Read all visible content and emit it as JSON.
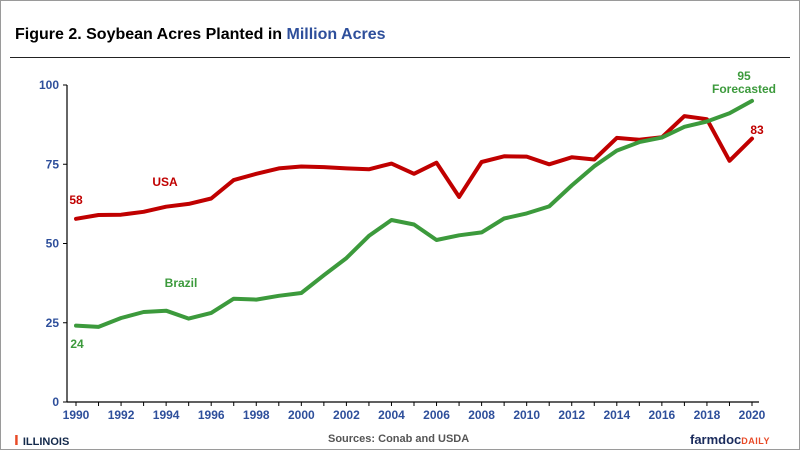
{
  "title": {
    "prefix": "Figure 2. Soybean Acres Planted in",
    "highlight": "Million Acres"
  },
  "footer": {
    "logo": "ILLINOIS",
    "sources": "Sources: Conab and USDA",
    "brand_main": "farmdoc",
    "brand_sub": "DAILY"
  },
  "colors": {
    "usa": "#c00000",
    "brazil": "#3c9a3c",
    "axis_text": "#2e4f9b",
    "axis": "#000000"
  },
  "chart_data": {
    "type": "line",
    "title": "Figure 2. Soybean Acres Planted in Million Acres",
    "xlabel": "",
    "ylabel": "",
    "xlim": [
      1990,
      2020
    ],
    "ylim": [
      0,
      100
    ],
    "x_ticks": [
      "1990",
      "1992",
      "1994",
      "1996",
      "1998",
      "2000",
      "2002",
      "2004",
      "2006",
      "2008",
      "2010",
      "2012",
      "2014",
      "2016",
      "2018",
      "2020"
    ],
    "y_ticks": [
      "0",
      "25",
      "50",
      "75",
      "100"
    ],
    "grid": false,
    "legend": "none",
    "x": [
      1990,
      1991,
      1992,
      1993,
      1994,
      1995,
      1996,
      1997,
      1998,
      1999,
      2000,
      2001,
      2002,
      2003,
      2004,
      2005,
      2006,
      2007,
      2008,
      2009,
      2010,
      2011,
      2012,
      2013,
      2014,
      2015,
      2016,
      2017,
      2018,
      2019,
      2020
    ],
    "series": [
      {
        "name": "USA",
        "color": "#c00000",
        "values": [
          57.8,
          59.0,
          59.1,
          60.0,
          61.6,
          62.5,
          64.2,
          70.0,
          72.0,
          73.7,
          74.3,
          74.1,
          73.7,
          73.4,
          75.2,
          72.0,
          75.5,
          64.7,
          75.7,
          77.5,
          77.4,
          75.0,
          77.2,
          76.5,
          83.3,
          82.7,
          83.5,
          90.2,
          89.2,
          76.1,
          83.1
        ]
      },
      {
        "name": "Brazil",
        "color": "#3c9a3c",
        "values": [
          24.1,
          23.7,
          26.5,
          28.4,
          28.8,
          26.3,
          28.1,
          32.6,
          32.3,
          33.5,
          34.4,
          40.0,
          45.4,
          52.4,
          57.4,
          56.0,
          51.1,
          52.6,
          53.5,
          57.9,
          59.5,
          61.7,
          68.3,
          74.4,
          79.3,
          82.0,
          83.4,
          86.8,
          88.5,
          91.1,
          95.0
        ]
      }
    ],
    "annotations": [
      {
        "text": "58",
        "series": "USA"
      },
      {
        "text": "83",
        "series": "USA"
      },
      {
        "text": "USA",
        "series": "USA"
      },
      {
        "text": "24",
        "series": "Brazil"
      },
      {
        "text": "Brazil",
        "series": "Brazil"
      },
      {
        "text": "95",
        "series": "Brazil"
      },
      {
        "text": "Forecasted",
        "series": "Brazil"
      }
    ]
  }
}
